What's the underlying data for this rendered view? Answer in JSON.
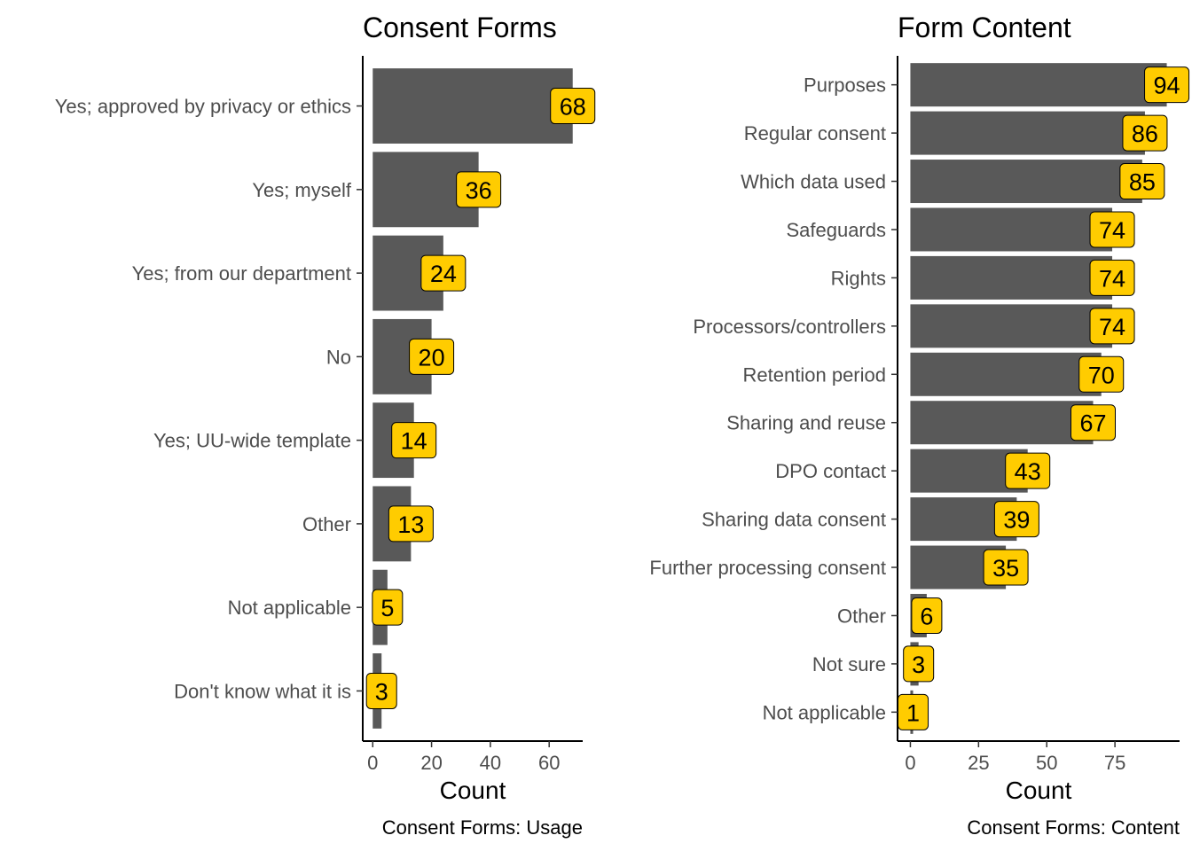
{
  "chart_data": [
    {
      "type": "bar",
      "orientation": "horizontal",
      "title": "Consent Forms",
      "xlabel": "Count",
      "ylabel": "",
      "caption": "Consent Forms: Usage",
      "categories": [
        "Yes; approved by privacy or ethics",
        "Yes; myself",
        "Yes; from our department",
        "No",
        "Yes; UU-wide template",
        "Other",
        "Not applicable",
        "Don't know what it is"
      ],
      "values": [
        68,
        36,
        24,
        20,
        14,
        13,
        5,
        3
      ],
      "xticks": [
        0,
        20,
        40,
        60
      ],
      "tick_labels": [
        "0",
        "20",
        "40",
        "60"
      ],
      "xlim": [
        -3.4,
        71.4
      ],
      "grid": false,
      "bar_color": "#595959",
      "label_fill": "#ffcc00"
    },
    {
      "type": "bar",
      "orientation": "horizontal",
      "title": "Form Content",
      "xlabel": "Count",
      "ylabel": "",
      "caption": "Consent Forms: Content",
      "categories": [
        "Purposes",
        "Regular consent",
        "Which data used",
        "Safeguards",
        "Rights",
        "Processors/controllers",
        "Retention period",
        "Sharing and reuse",
        "DPO contact",
        "Sharing data consent",
        "Further processing consent",
        "Other",
        "Not sure",
        "Not applicable"
      ],
      "values": [
        94,
        86,
        85,
        74,
        74,
        74,
        70,
        67,
        43,
        39,
        35,
        6,
        3,
        1
      ],
      "xticks": [
        0,
        25,
        50,
        75
      ],
      "tick_labels": [
        "0",
        "25",
        "50",
        "75"
      ],
      "xlim": [
        -4.7,
        98.7
      ],
      "grid": false,
      "bar_color": "#595959",
      "label_fill": "#ffcc00"
    }
  ]
}
